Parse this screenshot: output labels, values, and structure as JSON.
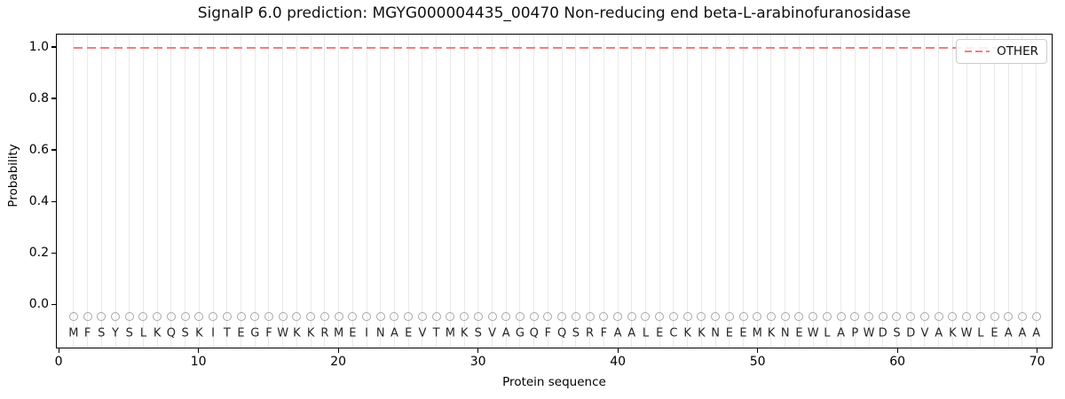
{
  "chart_data": {
    "type": "line",
    "title": "SignalP 6.0 prediction: MGYG000004435_00470 Non-reducing end beta-L-arabinofuranosidase",
    "xlabel": "Protein sequence",
    "ylabel": "Probability",
    "xlim": [
      -0.2,
      71.1
    ],
    "ylim": [
      -0.172,
      1.052
    ],
    "x_ticks": [
      0,
      10,
      20,
      30,
      40,
      50,
      60,
      70
    ],
    "y_ticks": [
      0.0,
      0.2,
      0.4,
      0.6,
      0.8,
      1.0
    ],
    "grid": "vertical-gridline-at-each-residue",
    "legend": {
      "position": "upper-right",
      "entries": [
        {
          "label": "OTHER",
          "style": "dashed",
          "color": "#f27e7e"
        }
      ]
    },
    "series": [
      {
        "name": "OTHER",
        "style": "dashed",
        "color": "#f27e7e",
        "x_start": 1,
        "x_end": 70,
        "y_constant": 1.0,
        "note": "flat line: probability 1.0 for all 70 positions"
      }
    ],
    "residue_markers": {
      "shape": "open-circle",
      "color": "#a8a8a8",
      "y": -0.05
    },
    "sequence": "MFSYSLKQSKITEGFWKKRMEINAEVTMKSVAGQFQSRFAALECKKNEEMKNEWLAPWDSDVAKWLEAAA",
    "sequence_y": -0.115
  },
  "colors": {
    "background": "#ffffff",
    "gridline": "#e9e9e9",
    "spine": "#000000",
    "other_line": "#f27e7e",
    "marker_outline": "#a8a8a8",
    "text": "#111111"
  }
}
